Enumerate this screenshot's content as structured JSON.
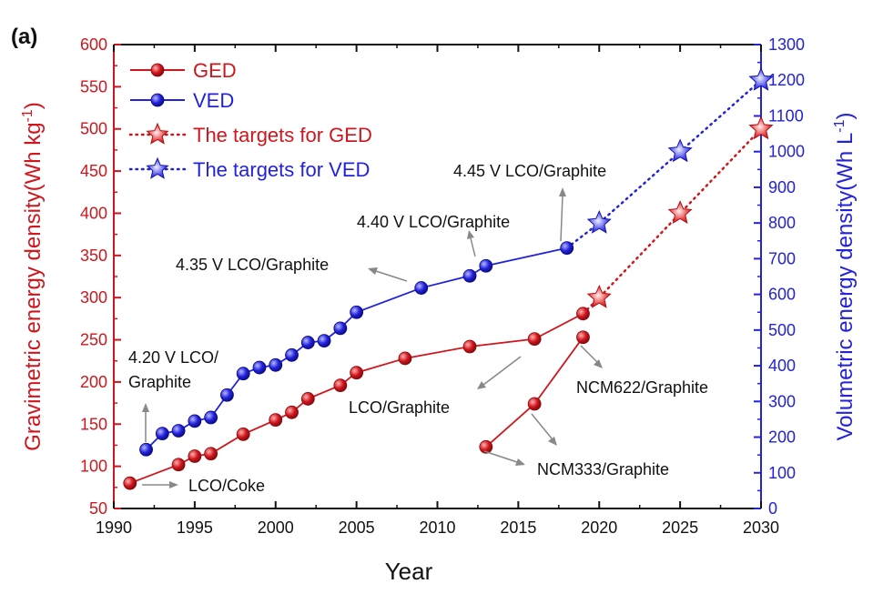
{
  "chart_data": {
    "type": "line",
    "panel_label": "(a)",
    "xlabel": "Year",
    "ylabel_left": "Gravimetric energy density(Wh kg",
    "ylabel_left_unit": "-1",
    "ylabel_left_close": ")",
    "ylabel_right": "Volumetric energy density(Wh L",
    "ylabel_right_unit": "-1",
    "ylabel_right_close": ")",
    "xlim": [
      1990,
      2030
    ],
    "ylim_left": [
      50,
      600
    ],
    "ylim_right": [
      0,
      1300
    ],
    "x_ticks": [
      1990,
      1995,
      2000,
      2005,
      2010,
      2015,
      2020,
      2025,
      2030
    ],
    "y_ticks_left": [
      50,
      100,
      150,
      200,
      250,
      300,
      350,
      400,
      450,
      500,
      550,
      600
    ],
    "y_ticks_right": [
      0,
      100,
      200,
      300,
      400,
      500,
      600,
      700,
      800,
      900,
      1000,
      1100,
      1200,
      1300
    ],
    "colors": {
      "ged": "#d0161c",
      "ved": "#2222dd",
      "axis_left": "#d0161c",
      "axis_right": "#2222dd"
    },
    "legend": {
      "position": "top-left",
      "entries": [
        "GED",
        "VED",
        "The targets for GED",
        "The targets for VED"
      ]
    },
    "series": [
      {
        "name": "GED",
        "axis": "left",
        "marker": "circle",
        "line": "solid",
        "x": [
          1991,
          1994,
          1995,
          1996,
          1998,
          2000,
          2001,
          2002,
          2004,
          2005,
          2008,
          2012,
          2016,
          2019
        ],
        "y": [
          80,
          102,
          112,
          115,
          138,
          155,
          164,
          180,
          196,
          211,
          228,
          242,
          251,
          281
        ]
      },
      {
        "name": "GED",
        "axis": "left",
        "marker": "circle",
        "line": "solid",
        "x": [
          2013,
          2016,
          2019
        ],
        "y": [
          123,
          174,
          253
        ]
      },
      {
        "name": "VED",
        "axis": "right",
        "marker": "circle",
        "line": "solid",
        "x": [
          1992,
          1993,
          1994,
          1995,
          1996,
          1997,
          1998,
          1999,
          2000,
          2001,
          2002,
          2003,
          2004,
          2005,
          2009,
          2012,
          2013,
          2018
        ],
        "y": [
          165,
          210,
          218,
          245,
          255,
          318,
          378,
          395,
          402,
          430,
          465,
          470,
          505,
          550,
          618,
          652,
          680,
          730
        ]
      },
      {
        "name": "The targets for GED",
        "axis": "left",
        "marker": "star",
        "line": "dotted",
        "x": [
          2020,
          2025,
          2030
        ],
        "y": [
          300,
          400,
          500
        ]
      },
      {
        "name": "The targets for VED",
        "axis": "right",
        "marker": "star",
        "line": "dotted",
        "x": [
          2020,
          2025,
          2030
        ],
        "y": [
          800,
          1000,
          1200
        ]
      }
    ],
    "annotations": [
      {
        "text": "LCO/Coke"
      },
      {
        "text_lines": [
          "4.20 V LCO/",
          "Graphite"
        ]
      },
      {
        "text": "4.35 V LCO/Graphite"
      },
      {
        "text": "4.40 V LCO/Graphite"
      },
      {
        "text": "4.45 V LCO/Graphite"
      },
      {
        "text": "LCO/Graphite"
      },
      {
        "text": "NCM622/Graphite"
      },
      {
        "text": "NCM333/Graphite"
      }
    ]
  }
}
